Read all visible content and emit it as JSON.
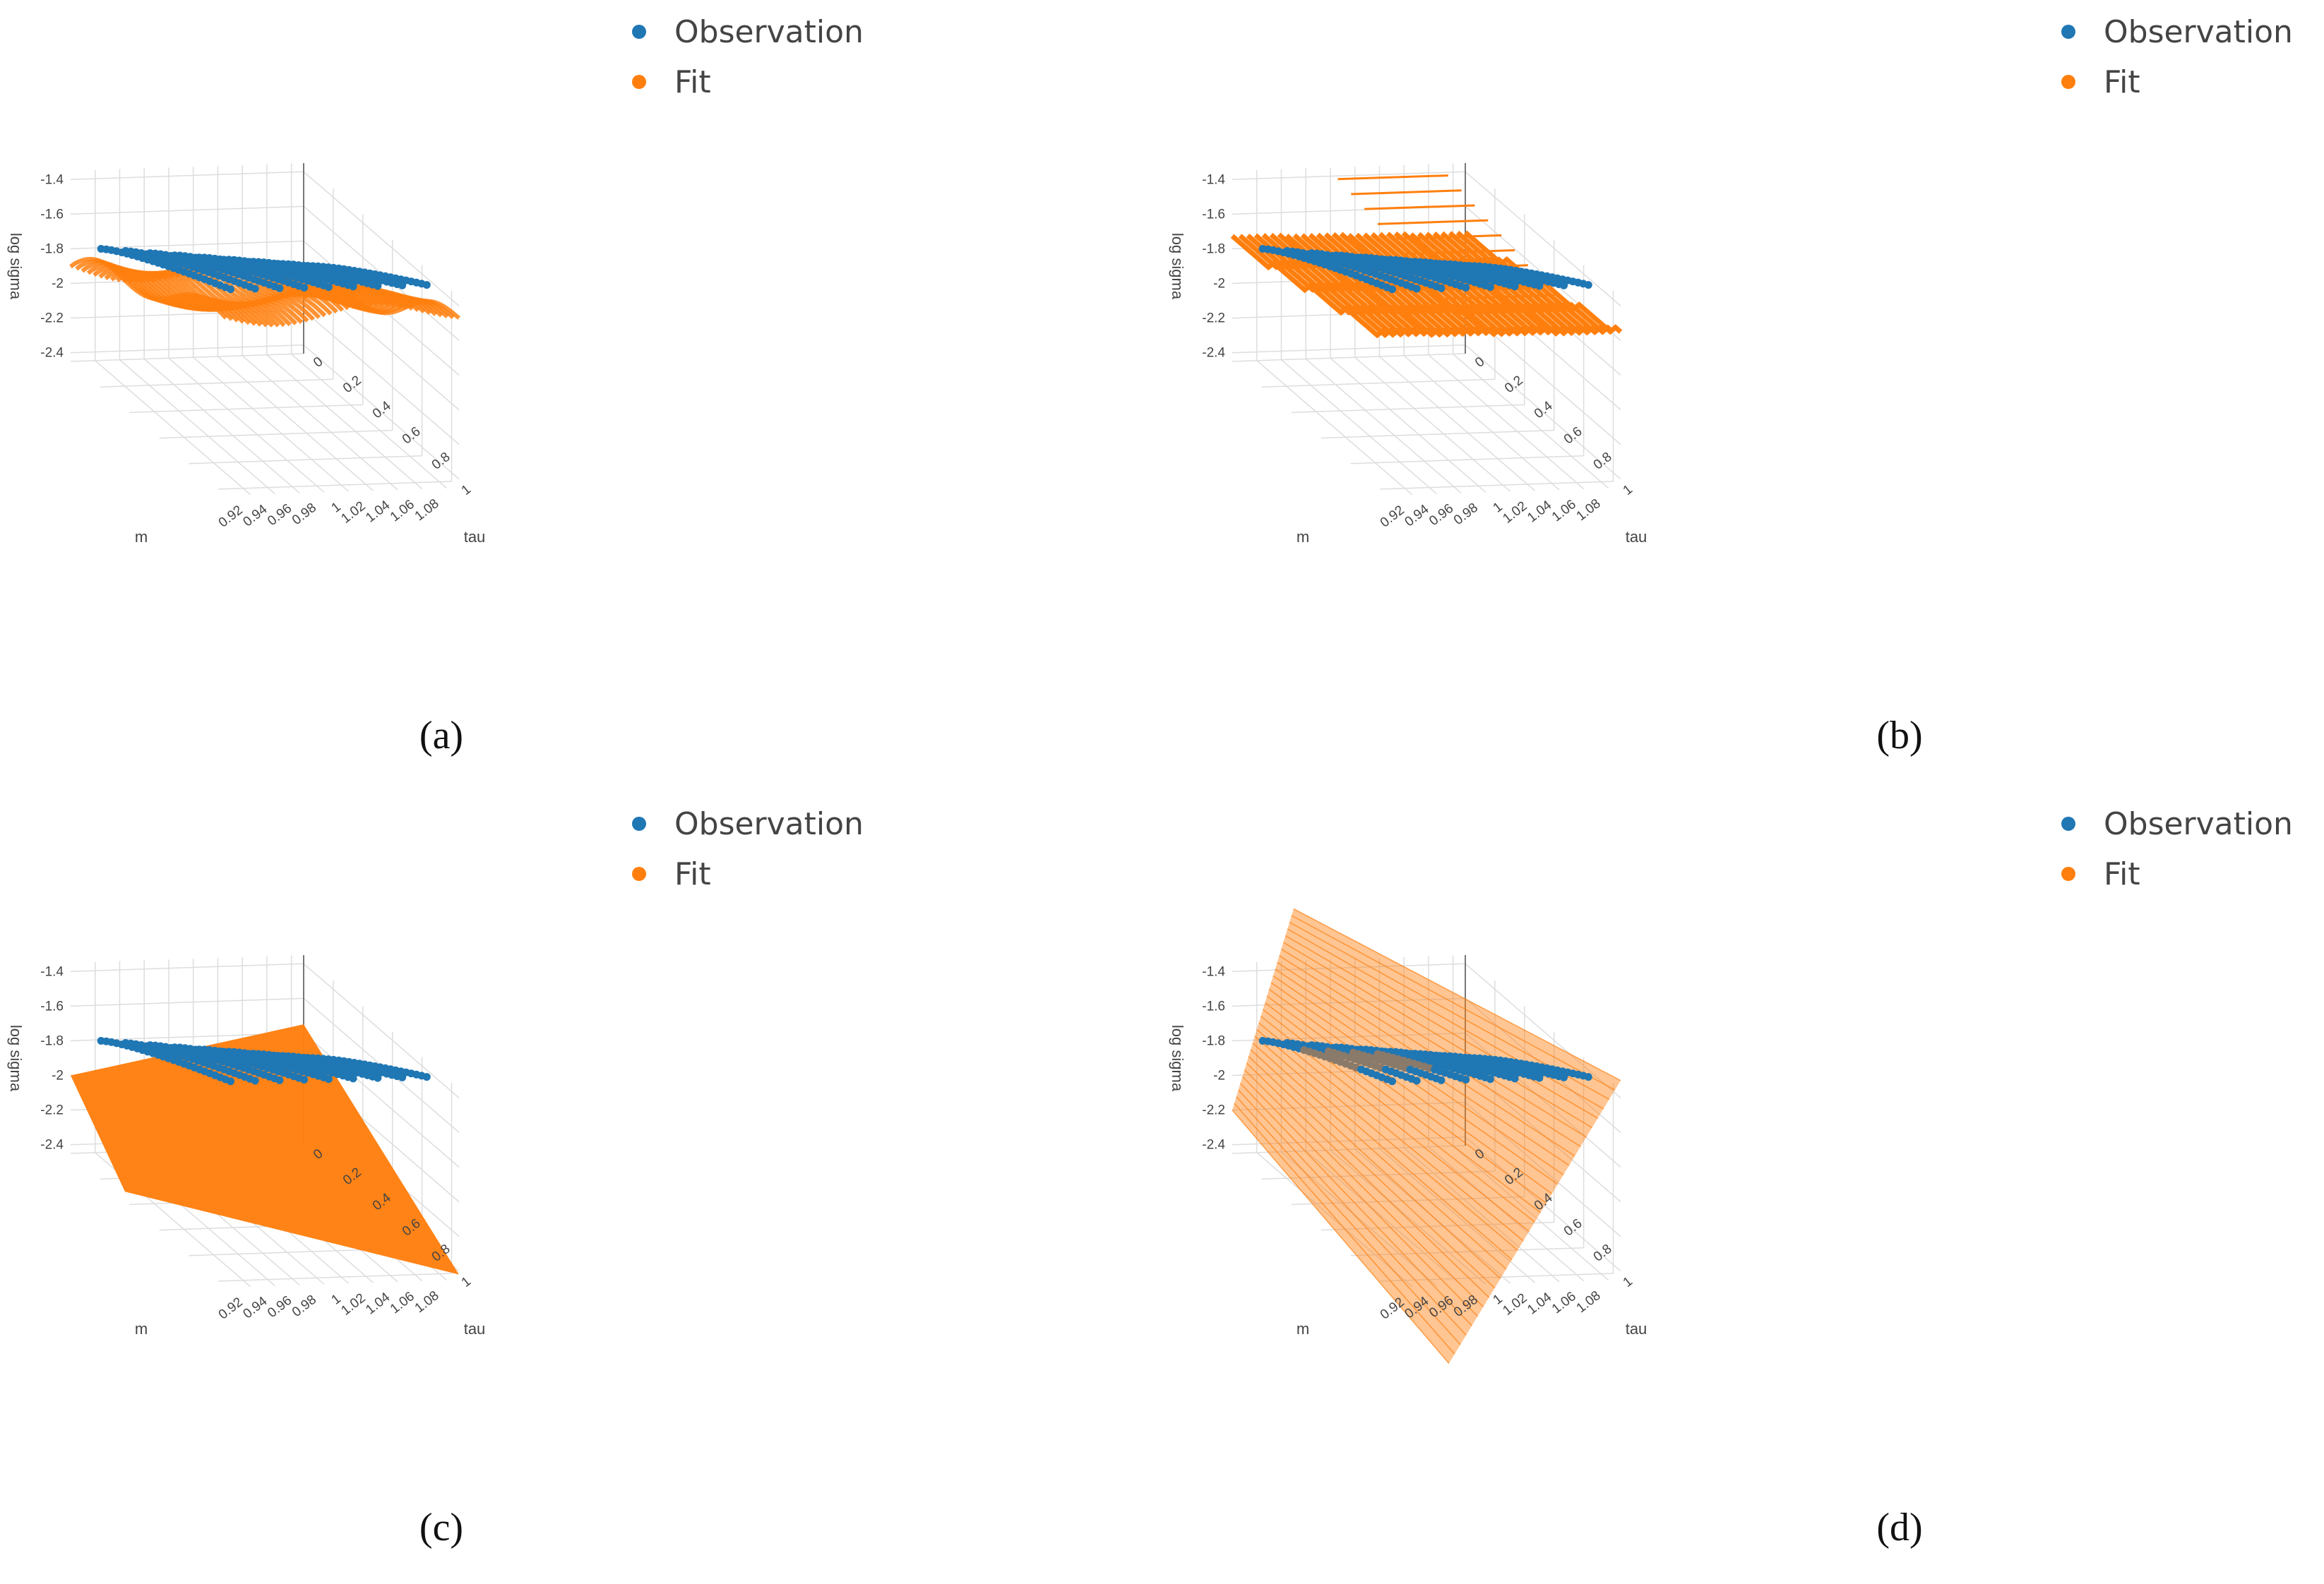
{
  "colors": {
    "observation": "#1f77b4",
    "fit": "#ff7f0e",
    "grid": "#dddddd",
    "axis": "#555555"
  },
  "chart_data": [
    {
      "panel": "a",
      "type": "scatter",
      "caption": "(a)",
      "legend": [
        "Observation",
        "Fit"
      ],
      "xlabel": "m",
      "ylabel": "tau",
      "zlabel": "log sigma",
      "m_ticks": [
        "1.08",
        "1.06",
        "1.04",
        "1.02",
        "1",
        "0.98",
        "0.96",
        "0.94",
        "0.92"
      ],
      "tau_ticks": [
        "0",
        "0.2",
        "0.4",
        "0.6",
        "0.8",
        "1"
      ],
      "z_ticks": [
        "-1.4",
        "-1.6",
        "-1.8",
        "-2",
        "-2.2",
        "-2.4"
      ],
      "m_range": [
        0.9,
        1.09
      ],
      "tau_range": [
        0,
        1.05
      ],
      "z_range": [
        -2.45,
        -1.35
      ],
      "fit_surface": "smooth wavy surface"
    },
    {
      "panel": "b",
      "type": "scatter",
      "caption": "(b)",
      "legend": [
        "Observation",
        "Fit"
      ],
      "xlabel": "m",
      "ylabel": "tau",
      "zlabel": "log sigma",
      "m_ticks": [
        "1.08",
        "1.06",
        "1.04",
        "1.02",
        "1",
        "0.98",
        "0.96",
        "0.94",
        "0.92"
      ],
      "tau_ticks": [
        "0",
        "0.2",
        "0.4",
        "0.6",
        "0.8",
        "1"
      ],
      "z_ticks": [
        "-1.4",
        "-1.6",
        "-1.8",
        "-2",
        "-2.2",
        "-2.4"
      ],
      "m_range": [
        0.9,
        1.09
      ],
      "tau_range": [
        0,
        1.05
      ],
      "z_range": [
        -2.45,
        -1.35
      ],
      "fit_surface": "stepped piecewise-constant surface"
    },
    {
      "panel": "c",
      "type": "scatter",
      "caption": "(c)",
      "legend": [
        "Observation",
        "Fit"
      ],
      "xlabel": "m",
      "ylabel": "tau",
      "zlabel": "log sigma",
      "m_ticks": [
        "1.08",
        "1.06",
        "1.04",
        "1.02",
        "1",
        "0.98",
        "0.96",
        "0.94",
        "0.92"
      ],
      "tau_ticks": [
        "0",
        "0.2",
        "0.4",
        "0.6",
        "0.8",
        "1"
      ],
      "z_ticks": [
        "-1.4",
        "-1.6",
        "-1.8",
        "-2",
        "-2.2",
        "-2.4"
      ],
      "m_range": [
        0.9,
        1.09
      ],
      "tau_range": [
        0,
        1.05
      ],
      "z_range": [
        -2.45,
        -1.35
      ],
      "fit_surface": "flat plane below observations"
    },
    {
      "panel": "d",
      "type": "scatter",
      "caption": "(d)",
      "legend": [
        "Observation",
        "Fit"
      ],
      "xlabel": "m",
      "ylabel": "tau",
      "zlabel": "log sigma",
      "m_ticks": [
        "1.08",
        "1.06",
        "1.04",
        "1.02",
        "1",
        "0.98",
        "0.96",
        "0.94",
        "0.92"
      ],
      "tau_ticks": [
        "0",
        "0.2",
        "0.4",
        "0.6",
        "0.8",
        "1"
      ],
      "z_ticks": [
        "-1.4",
        "-1.6",
        "-1.8",
        "-2",
        "-2.2",
        "-2.4"
      ],
      "m_range": [
        0.9,
        1.09
      ],
      "tau_range": [
        0,
        1.05
      ],
      "z_range": [
        -2.45,
        -1.35
      ],
      "fit_surface": "steep tilted plane through observations"
    }
  ],
  "observations": {
    "strand_m_values": [
      1.08,
      1.06,
      1.04,
      1.02,
      1.0,
      0.98,
      0.96,
      0.94,
      0.92
    ],
    "tau_values": [
      0.05,
      0.15,
      0.25,
      0.35,
      0.5,
      0.7,
      0.9
    ],
    "note": "log sigma rises with tau; curve shape shared by all panels"
  }
}
